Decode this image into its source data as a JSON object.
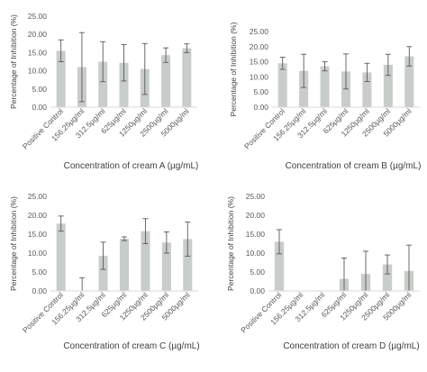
{
  "chart_data": [
    {
      "type": "bar",
      "panel": "A",
      "categories": [
        "Positive Control",
        "156.25µg/ml",
        "312.5µg/ml",
        "625µg/ml",
        "1250µg/ml",
        "2500µg/ml",
        "5000µg/ml"
      ],
      "values": [
        15.5,
        11.0,
        12.5,
        12.2,
        10.5,
        14.3,
        16.2
      ],
      "errors": [
        3.0,
        9.5,
        5.5,
        5.0,
        7.0,
        2.0,
        1.2
      ],
      "xlabel": "Concentration of cream A (µg/mL)",
      "ylabel": "Percentage of Inhibition (%)",
      "ylim": [
        0,
        25
      ],
      "yticks": [
        "0.00",
        "5.00",
        "10.00",
        "15.00",
        "20.00",
        "25.00"
      ],
      "bar_color": "#c9cdc9",
      "grid": false
    },
    {
      "type": "bar",
      "panel": "B",
      "categories": [
        "Positive Control",
        "156.25µg/ml",
        "312.5µg/ml",
        "625µg/ml",
        "1250µg/ml",
        "2500µg/ml",
        "5000µg/ml"
      ],
      "values": [
        14.5,
        12.0,
        13.5,
        11.8,
        11.5,
        14.0,
        16.8
      ],
      "errors": [
        2.0,
        5.5,
        1.5,
        5.8,
        3.0,
        3.5,
        3.2
      ],
      "xlabel": "Concentration of cream B (µg/mL)",
      "ylabel": "Percentage of Inhibition (%)",
      "ylim": [
        0,
        25
      ],
      "yticks": [
        "0.00",
        "5.00",
        "10.00",
        "15.00",
        "20.00",
        "25.00"
      ],
      "bar_color": "#c9cdc9",
      "grid": false
    },
    {
      "type": "bar",
      "panel": "C",
      "categories": [
        "Positive Control",
        "156.25µg/ml",
        "312.5µg/ml",
        "625µg/ml",
        "1250µg/ml",
        "2500µg/ml",
        "5000µg/ml"
      ],
      "values": [
        17.8,
        0.0,
        9.3,
        13.8,
        15.8,
        12.8,
        13.7
      ],
      "errors": [
        2.0,
        3.5,
        3.6,
        0.5,
        3.3,
        2.8,
        4.5
      ],
      "xlabel": "Concentration of cream C (µg/mL)",
      "ylabel": "Percentage of Inhibition (%)",
      "ylim": [
        0,
        25
      ],
      "yticks": [
        "0.00",
        "5.00",
        "10.00",
        "15.00",
        "20.00",
        "25.00"
      ],
      "bar_color": "#c9cdc9",
      "grid": false
    },
    {
      "type": "bar",
      "panel": "D",
      "categories": [
        "Positive Control",
        "156.25µg/ml",
        "312.5µg/ml",
        "625µg/ml",
        "1250µg/ml",
        "2500µg/ml",
        "5000µg/ml"
      ],
      "values": [
        13.0,
        0.0,
        0.0,
        3.2,
        4.5,
        7.0,
        5.3
      ],
      "errors": [
        3.2,
        0.0,
        0.0,
        5.5,
        6.0,
        2.5,
        6.8
      ],
      "xlabel": "Concentration of cream D (µg/mL)",
      "ylabel": "Percentage of Inhibition (%)",
      "ylim": [
        0,
        25
      ],
      "yticks": [
        "0.00",
        "5.00",
        "10.00",
        "15.00",
        "20.00",
        "25.00"
      ],
      "bar_color": "#c9cdc9",
      "grid": false
    }
  ]
}
